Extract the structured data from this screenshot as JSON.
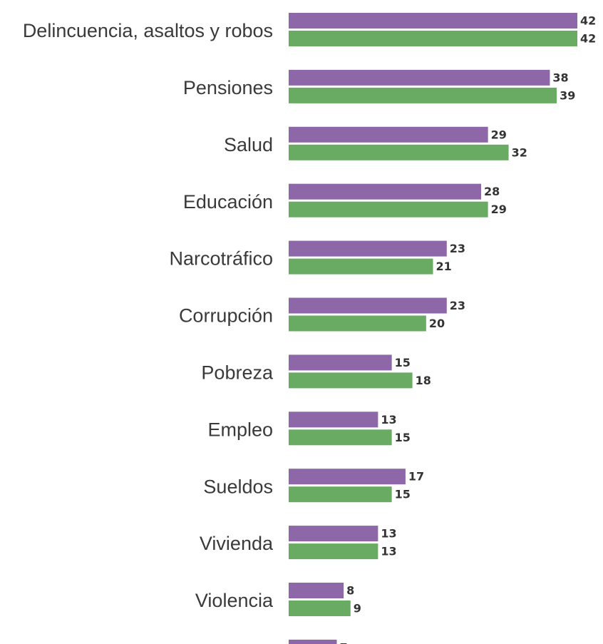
{
  "chart_data": {
    "type": "bar",
    "orientation": "horizontal",
    "categories": [
      "Delincuencia, asaltos y robos",
      "Pensiones",
      "Salud",
      "Educación",
      "Narcotráfico",
      "Corrupción",
      "Pobreza",
      "Empleo",
      "Sueldos",
      "Vivienda",
      "Violencia",
      ""
    ],
    "series": [
      {
        "color": "#8e67a8",
        "values": [
          42,
          38,
          29,
          28,
          23,
          23,
          15,
          13,
          17,
          13,
          8,
          7
        ]
      },
      {
        "color": "#6aab63",
        "values": [
          42,
          39,
          32,
          29,
          21,
          20,
          18,
          15,
          15,
          13,
          9,
          null
        ]
      }
    ],
    "xlim": [
      0,
      42
    ],
    "grid": false,
    "legend": "none"
  }
}
